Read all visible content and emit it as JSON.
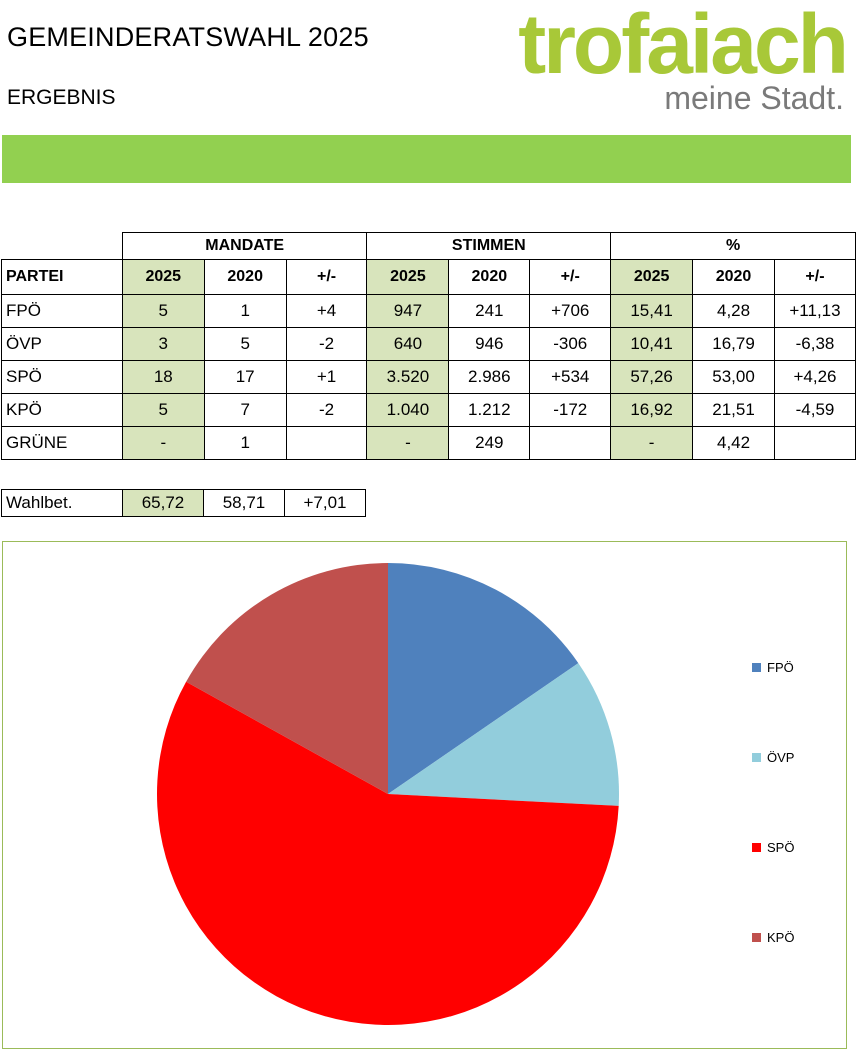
{
  "header": {
    "title": "GEMEINDERATSWAHL 2025",
    "subtitle": "ERGEBNIS",
    "logo_text": "trofaiach",
    "logo_tagline": "meine Stadt."
  },
  "table": {
    "groups": [
      "MANDATE",
      "STIMMEN",
      "%"
    ],
    "party_header": "PARTEI",
    "sub_headers": [
      "2025",
      "2020",
      "+/-",
      "2025",
      "2020",
      "+/-",
      "2025",
      "2020",
      "+/-"
    ],
    "rows": [
      {
        "party": "FPÖ",
        "cells": [
          "5",
          "1",
          "+4",
          "947",
          "241",
          "+706",
          "15,41",
          "4,28",
          "+11,13"
        ]
      },
      {
        "party": "ÖVP",
        "cells": [
          "3",
          "5",
          "-2",
          "640",
          "946",
          "-306",
          "10,41",
          "16,79",
          "-6,38"
        ]
      },
      {
        "party": "SPÖ",
        "cells": [
          "18",
          "17",
          "+1",
          "3.520",
          "2.986",
          "+534",
          "57,26",
          "53,00",
          "+4,26"
        ]
      },
      {
        "party": "KPÖ",
        "cells": [
          "5",
          "7",
          "-2",
          "1.040",
          "1.212",
          "-172",
          "16,92",
          "21,51",
          "-4,59"
        ]
      },
      {
        "party": "GRÜNE",
        "cells": [
          "-",
          "1",
          "",
          "-",
          "249",
          "",
          "-",
          "4,42",
          ""
        ]
      }
    ]
  },
  "turnout": {
    "label": "Wahlbet.",
    "values": [
      "65,72",
      "58,71",
      "+7,01"
    ]
  },
  "chart_data": {
    "type": "pie",
    "title": "",
    "categories": [
      "FPÖ",
      "ÖVP",
      "SPÖ",
      "KPÖ"
    ],
    "values": [
      15.41,
      10.41,
      57.26,
      16.92
    ],
    "colors": [
      "#4f81bd",
      "#92cddc",
      "#ff0000",
      "#c0504d"
    ],
    "start_angle_deg": 0,
    "direction": "clockwise",
    "legend_position": "right"
  }
}
